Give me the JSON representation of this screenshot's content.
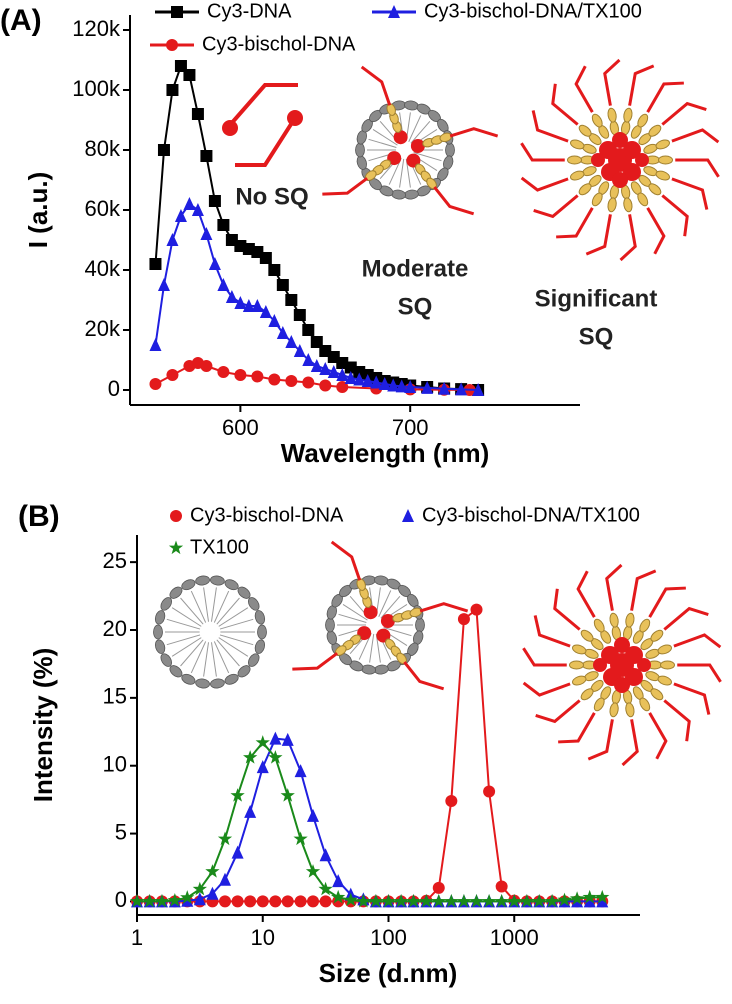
{
  "chart_data": [
    {
      "type": "line",
      "panel_label": "(A)",
      "x_label": "Wavelength (nm)",
      "y_label": "I (a.u.)",
      "xlim": [
        535,
        800
      ],
      "ylim": [
        -5000,
        125000
      ],
      "xticks": [
        600,
        700
      ],
      "yticks": [
        0,
        {
          "value": 20000,
          "label": "20k"
        },
        {
          "value": 40000,
          "label": "40k"
        },
        {
          "value": 60000,
          "label": "60k"
        },
        {
          "value": 80000,
          "label": "80k"
        },
        {
          "value": 100000,
          "label": "100k"
        },
        {
          "value": 120000,
          "label": "120k"
        }
      ],
      "annotations": [
        {
          "lines": [
            "No SQ"
          ]
        },
        {
          "lines": [
            "Moderate",
            "SQ"
          ]
        },
        {
          "lines": [
            "Significant",
            "SQ"
          ]
        }
      ],
      "series": [
        {
          "name": "Cy3-DNA",
          "color": "#000000",
          "marker": "square",
          "x": [
            550,
            555,
            560,
            565,
            570,
            575,
            580,
            585,
            590,
            595,
            600,
            605,
            610,
            615,
            620,
            625,
            630,
            635,
            640,
            645,
            650,
            655,
            660,
            665,
            670,
            675,
            680,
            685,
            690,
            695,
            700,
            710,
            720,
            730,
            740
          ],
          "values": [
            42000,
            80000,
            100000,
            108000,
            105000,
            92000,
            78000,
            63000,
            55000,
            50000,
            48000,
            47000,
            46000,
            44000,
            40000,
            35000,
            30000,
            25000,
            20000,
            16000,
            13000,
            11000,
            9000,
            7500,
            6000,
            5000,
            4000,
            3000,
            2500,
            2000,
            1500,
            1000,
            500,
            300,
            0
          ]
        },
        {
          "name": "Cy3-bischol-DNA",
          "color": "#e31a1c",
          "marker": "circle",
          "x": [
            550,
            560,
            570,
            575,
            580,
            590,
            600,
            610,
            620,
            630,
            640,
            650,
            660,
            680,
            700,
            720,
            735
          ],
          "values": [
            2000,
            5000,
            8000,
            9000,
            8000,
            6000,
            5000,
            4500,
            3500,
            3000,
            2500,
            1500,
            1000,
            500,
            200,
            100,
            0
          ]
        },
        {
          "name": "Cy3-bischol-DNA/TX100",
          "color": "#1f1fe0",
          "marker": "triangle",
          "x": [
            550,
            555,
            560,
            565,
            570,
            575,
            580,
            585,
            590,
            595,
            600,
            605,
            610,
            615,
            620,
            625,
            630,
            635,
            640,
            645,
            650,
            655,
            660,
            665,
            670,
            675,
            680,
            685,
            690,
            695,
            700,
            710,
            720,
            730,
            740
          ],
          "values": [
            15000,
            35000,
            50000,
            58000,
            62000,
            60000,
            52000,
            42000,
            35000,
            31000,
            29000,
            28000,
            28000,
            26000,
            23000,
            19000,
            16000,
            13000,
            10000,
            8000,
            7000,
            6000,
            5000,
            4000,
            3500,
            3000,
            2500,
            2000,
            1500,
            1200,
            1000,
            700,
            400,
            200,
            0
          ]
        }
      ]
    },
    {
      "type": "line",
      "panel_label": "(B)",
      "x_label": "Size (d.nm)",
      "y_label": "Intensity (%)",
      "xlog": true,
      "xlim": [
        1,
        10000
      ],
      "ylim": [
        -1,
        27
      ],
      "xticks": [
        1,
        10,
        100,
        1000
      ],
      "yticks": [
        0,
        5,
        10,
        15,
        20,
        25
      ],
      "x": [
        1,
        1.26,
        1.58,
        2,
        2.51,
        3.16,
        3.98,
        5.01,
        6.31,
        7.94,
        10,
        12.6,
        15.8,
        20,
        25.1,
        31.6,
        39.8,
        50.1,
        63.1,
        79.4,
        100,
        126,
        158,
        200,
        251,
        316,
        398,
        501,
        631,
        794,
        1000,
        1260,
        1580,
        2000,
        2510,
        3160,
        3980,
        5010
      ],
      "series": [
        {
          "name": "Cy3-bischol-DNA",
          "color": "#e31a1c",
          "marker": "circle",
          "values": [
            0,
            0,
            0,
            0,
            0,
            0,
            0,
            0,
            0,
            0,
            0,
            0,
            0,
            0,
            0,
            0,
            0,
            0,
            0,
            0,
            0,
            0,
            0,
            0.05,
            1.0,
            7.4,
            20.8,
            21.5,
            8.1,
            1.1,
            0.06,
            0,
            0,
            0,
            0,
            0,
            0,
            0
          ]
        },
        {
          "name": "Cy3-bischol-DNA/TX100",
          "color": "#1f1fe0",
          "marker": "triangle",
          "values": [
            0,
            0,
            0,
            0,
            0.05,
            0.16,
            0.57,
            1.6,
            3.6,
            6.6,
            9.9,
            12.0,
            11.9,
            9.6,
            6.3,
            3.4,
            1.5,
            0.5,
            0.15,
            0,
            0,
            0,
            0,
            0,
            0,
            0,
            0,
            0,
            0,
            0,
            0,
            0,
            0,
            0,
            0,
            0,
            0,
            0
          ]
        },
        {
          "name": "TX100",
          "color": "#1a8a1a",
          "marker": "star",
          "values": [
            0,
            0,
            0,
            0.07,
            0.28,
            0.9,
            2.2,
            4.6,
            7.8,
            10.6,
            11.7,
            10.6,
            7.8,
            4.6,
            2.2,
            0.9,
            0.3,
            0.1,
            0,
            0,
            0,
            0,
            0,
            0,
            0,
            0,
            0,
            0,
            0,
            0,
            0,
            0,
            0,
            0,
            0.1,
            0.2,
            0.3,
            0.3
          ]
        }
      ]
    }
  ]
}
